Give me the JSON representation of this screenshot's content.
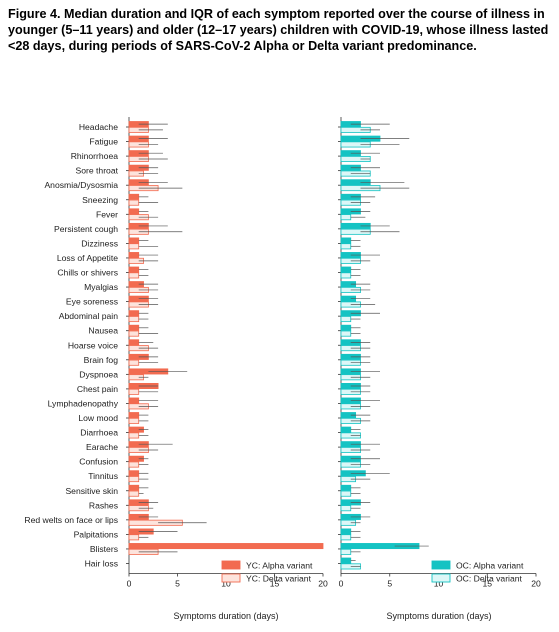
{
  "title": "Figure 4. Median duration and IQR of each symptom reported over the course of illness in younger (5–11 years) and older (12–17 years) children with COVID-19, whose illness lasted <28 days, during periods of SARS-CoV-2 Alpha or Delta variant predominance.",
  "colors": {
    "yc_alpha": "#f26b50",
    "yc_delta_fill": "#fde3dc",
    "yc_delta_stroke": "#f26b50",
    "oc_alpha": "#14c3c3",
    "oc_delta_fill": "#dcf7f7",
    "oc_delta_stroke": "#14c3c3",
    "whisker": "#555555"
  },
  "chart_data": {
    "type": "bar",
    "orientation": "horizontal",
    "xlabel": "Symptoms duration (days)",
    "xlim": [
      0,
      20
    ],
    "xticks": [
      0,
      5,
      10,
      15,
      20
    ],
    "grid": false,
    "legend_position": "bottom-right",
    "categories": [
      "Headache",
      "Fatigue",
      "Rhinorrhoea",
      "Sore throat",
      "Anosmia/Dysosmia",
      "Sneezing",
      "Fever",
      "Persistent cough",
      "Dizziness",
      "Loss of Appetite",
      "Chills or shivers",
      "Myalgias",
      "Eye soreness",
      "Abdominal pain",
      "Nausea",
      "Hoarse voice",
      "Brain fog",
      "Dyspnoea",
      "Chest pain",
      "Lymphadenopathy",
      "Low mood",
      "Diarrhoea",
      "Earache",
      "Confusion",
      "Tinnitus",
      "Sensitive skin",
      "Rashes",
      "Red welts on face or lips",
      "Palpitations",
      "Blisters",
      "Hair loss"
    ],
    "panels": [
      {
        "group": "YC",
        "series": [
          {
            "name": "YC: Alpha variant",
            "values": [
              2,
              2,
              2,
              2,
              2,
              1,
              1,
              2,
              1,
              1,
              1,
              1.5,
              2,
              1,
              1,
              1,
              2,
              4,
              3,
              1,
              1,
              1.5,
              2,
              1.5,
              1,
              1,
              2,
              2,
              2.5,
              20,
              null
            ],
            "iqr": [
              [
                1,
                4
              ],
              [
                1,
                4
              ],
              [
                1,
                3.5
              ],
              [
                1,
                3
              ],
              [
                1,
                4
              ],
              [
                1,
                2
              ],
              [
                1,
                2
              ],
              [
                1,
                4
              ],
              [
                1,
                2
              ],
              [
                1,
                3
              ],
              [
                1,
                2
              ],
              [
                1,
                3
              ],
              [
                1,
                3
              ],
              [
                1,
                2
              ],
              [
                1,
                2
              ],
              [
                1,
                2.5
              ],
              [
                1,
                3
              ],
              [
                2,
                6
              ],
              [
                1,
                3
              ],
              [
                1,
                3
              ],
              [
                1,
                2
              ],
              [
                1,
                2
              ],
              [
                1,
                4.5
              ],
              [
                1,
                2
              ],
              [
                1,
                2
              ],
              [
                1,
                2
              ],
              [
                1,
                3
              ],
              [
                1,
                3
              ],
              [
                1,
                5
              ],
              [
                20,
                20
              ],
              null
            ]
          },
          {
            "name": "YC: Delta variant",
            "values": [
              2,
              2,
              2,
              1.5,
              3,
              1,
              2,
              2,
              1,
              1.5,
              1,
              2,
              2,
              1,
              1,
              2,
              1,
              1.5,
              1,
              2,
              1,
              1,
              2,
              1,
              1,
              1,
              2,
              5.5,
              1,
              3,
              null
            ],
            "iqr": [
              [
                1,
                3.5
              ],
              [
                1,
                3
              ],
              [
                1,
                4
              ],
              [
                1,
                3
              ],
              [
                1,
                5.5
              ],
              [
                1,
                3
              ],
              [
                1,
                3
              ],
              [
                1,
                5.5
              ],
              [
                1,
                3
              ],
              [
                1,
                3
              ],
              [
                1,
                2
              ],
              [
                1,
                3
              ],
              [
                1,
                3
              ],
              [
                1,
                2
              ],
              [
                1,
                3
              ],
              [
                1,
                3
              ],
              [
                1,
                3
              ],
              [
                1,
                2
              ],
              [
                1,
                3
              ],
              [
                1,
                3
              ],
              [
                1,
                2
              ],
              [
                1,
                2
              ],
              [
                1,
                3
              ],
              [
                1,
                2
              ],
              [
                1,
                2
              ],
              [
                1,
                1.5
              ],
              [
                1,
                2.5
              ],
              [
                3,
                8
              ],
              [
                1,
                2
              ],
              [
                1,
                5
              ],
              null
            ]
          }
        ]
      },
      {
        "group": "OC",
        "series": [
          {
            "name": "OC: Alpha variant",
            "values": [
              2,
              4,
              2,
              2,
              3,
              2,
              2,
              3,
              1,
              2,
              1,
              1.5,
              1.5,
              2,
              1,
              2,
              2,
              2,
              2,
              2,
              1.5,
              1,
              2,
              2,
              2.5,
              1,
              2,
              2,
              1,
              8,
              1
            ],
            "iqr": [
              [
                1,
                5
              ],
              [
                2,
                7
              ],
              [
                1,
                4
              ],
              [
                1,
                4
              ],
              [
                2,
                6.5
              ],
              [
                1,
                3.5
              ],
              [
                1,
                3
              ],
              [
                2,
                5
              ],
              [
                1,
                2
              ],
              [
                1,
                4
              ],
              [
                1,
                2
              ],
              [
                1,
                3
              ],
              [
                1,
                3
              ],
              [
                1,
                4
              ],
              [
                1,
                2
              ],
              [
                1,
                3
              ],
              [
                1,
                3
              ],
              [
                1,
                4
              ],
              [
                1,
                3
              ],
              [
                1,
                4
              ],
              [
                1,
                3
              ],
              [
                1,
                2
              ],
              [
                1,
                4
              ],
              [
                1,
                4
              ],
              [
                1,
                5
              ],
              [
                1,
                2
              ],
              [
                1,
                3
              ],
              [
                1,
                3
              ],
              [
                1,
                2
              ],
              [
                5.5,
                9
              ],
              [
                1,
                1.5
              ]
            ]
          },
          {
            "name": "OC: Delta variant",
            "values": [
              3,
              3,
              3,
              3,
              4,
              2,
              1,
              3,
              1,
              2,
              1,
              2,
              2,
              1,
              1,
              2,
              2,
              2,
              2,
              2,
              2,
              2,
              2,
              2,
              1.5,
              1,
              1,
              1.5,
              1,
              1,
              2
            ],
            "iqr": [
              [
                2,
                4
              ],
              [
                2,
                6
              ],
              [
                2,
                3
              ],
              [
                1,
                3
              ],
              [
                2,
                7
              ],
              [
                1,
                3
              ],
              [
                1,
                2.5
              ],
              [
                2,
                6
              ],
              [
                1,
                2
              ],
              [
                1,
                3
              ],
              [
                1,
                2
              ],
              [
                1,
                3
              ],
              [
                1,
                3.5
              ],
              [
                1,
                2
              ],
              [
                1,
                2
              ],
              [
                1,
                3
              ],
              [
                1,
                3
              ],
              [
                1,
                3
              ],
              [
                1,
                3
              ],
              [
                1,
                3
              ],
              [
                1,
                3
              ],
              [
                1,
                2
              ],
              [
                1,
                3
              ],
              [
                1,
                3
              ],
              [
                1,
                3
              ],
              [
                1,
                2
              ],
              [
                1,
                2
              ],
              [
                1,
                2
              ],
              [
                1,
                2
              ],
              [
                1,
                2
              ],
              [
                1,
                2
              ]
            ]
          }
        ]
      }
    ]
  }
}
